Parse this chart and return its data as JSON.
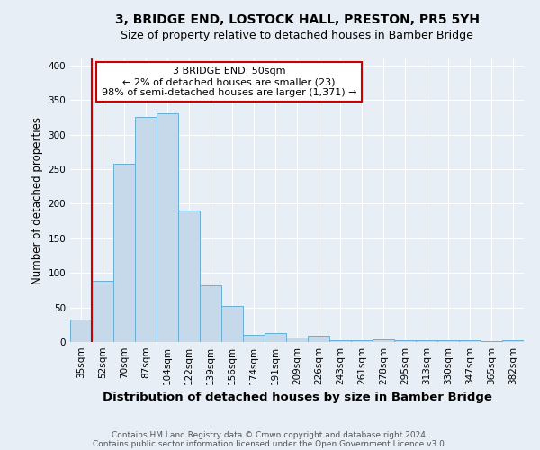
{
  "title": "3, BRIDGE END, LOSTOCK HALL, PRESTON, PR5 5YH",
  "subtitle": "Size of property relative to detached houses in Bamber Bridge",
  "xlabel": "Distribution of detached houses by size in Bamber Bridge",
  "ylabel": "Number of detached properties",
  "categories": [
    "35sqm",
    "52sqm",
    "70sqm",
    "87sqm",
    "104sqm",
    "122sqm",
    "139sqm",
    "156sqm",
    "174sqm",
    "191sqm",
    "209sqm",
    "226sqm",
    "243sqm",
    "261sqm",
    "278sqm",
    "295sqm",
    "313sqm",
    "330sqm",
    "347sqm",
    "365sqm",
    "382sqm"
  ],
  "values": [
    33,
    88,
    258,
    325,
    330,
    190,
    82,
    52,
    11,
    13,
    7,
    9,
    3,
    3,
    4,
    2,
    2,
    2,
    2,
    1,
    3
  ],
  "bar_color": "#c6d9ea",
  "bar_edge_color": "#6aafd4",
  "highlight_index": 1,
  "highlight_line_color": "#cc0000",
  "ylim": [
    0,
    410
  ],
  "yticks": [
    0,
    50,
    100,
    150,
    200,
    250,
    300,
    350,
    400
  ],
  "annotation_text": "3 BRIDGE END: 50sqm\n← 2% of detached houses are smaller (23)\n98% of semi-detached houses are larger (1,371) →",
  "annotation_box_color": "#ffffff",
  "annotation_box_edge_color": "#cc0000",
  "footnote1": "Contains HM Land Registry data © Crown copyright and database right 2024.",
  "footnote2": "Contains public sector information licensed under the Open Government Licence v3.0.",
  "title_fontsize": 10,
  "subtitle_fontsize": 9,
  "xlabel_fontsize": 9.5,
  "ylabel_fontsize": 8.5,
  "tick_fontsize": 7.5,
  "annotation_fontsize": 8,
  "footnote_fontsize": 6.5,
  "background_color": "#e8eef5",
  "plot_bg_color": "#e8eef5"
}
